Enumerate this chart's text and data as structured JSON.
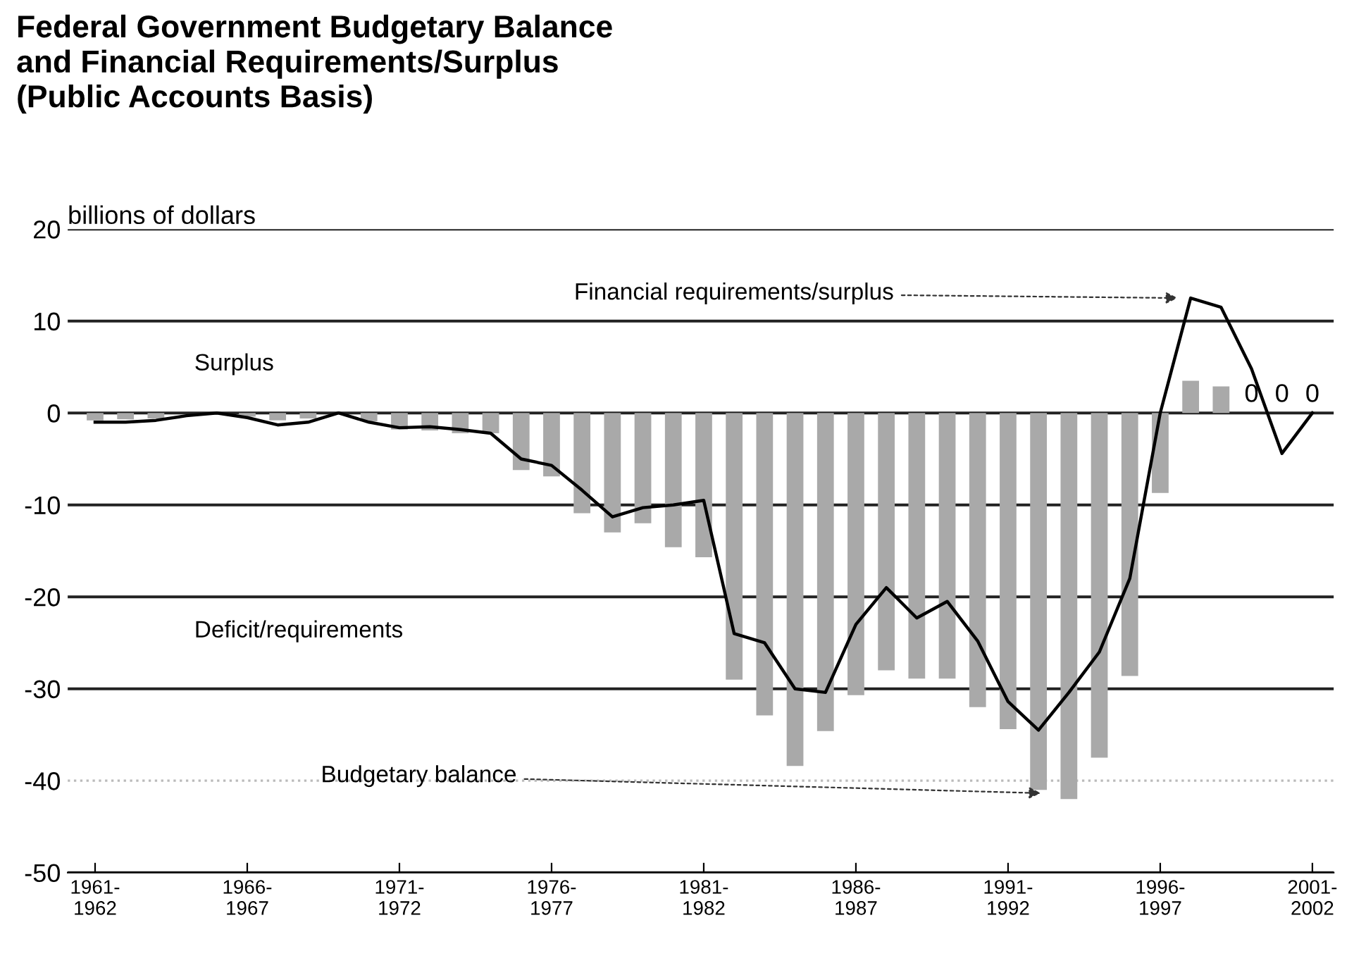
{
  "chart_data": {
    "type": "bar",
    "title": "Federal Government Budgetary Balance\nand Financial Requirements/Surplus\n(Public Accounts Basis)",
    "ylabel": "billions of dollars",
    "annotations": [
      "Surplus",
      "Deficit/requirements"
    ],
    "categories": [
      "1961-\n1962",
      null,
      null,
      null,
      null,
      "1966-\n1967",
      null,
      null,
      null,
      null,
      "1971-\n1972",
      null,
      null,
      null,
      null,
      "1976-\n1977",
      null,
      null,
      null,
      null,
      "1981-\n1982",
      null,
      null,
      null,
      null,
      "1986-\n1987",
      null,
      null,
      null,
      null,
      "1991-\n1992",
      null,
      null,
      null,
      null,
      "1996-\n1997",
      null,
      null,
      null,
      null,
      "2001-\n2002"
    ],
    "series": [
      {
        "name": "Budgetary balance",
        "color": "#a9a9a9",
        "values": [
          -0.8,
          -0.7,
          -0.6,
          null,
          -0.1,
          -0.4,
          -0.8,
          -0.6,
          null,
          -0.9,
          -1.8,
          -1.9,
          -2.2,
          -2.2,
          -6.2,
          -6.9,
          -10.9,
          -13.0,
          -12.0,
          -14.6,
          -15.7,
          -29.0,
          -32.9,
          -38.4,
          -34.6,
          -30.7,
          -28.0,
          -28.9,
          -28.9,
          -32.0,
          -34.4,
          -41.0,
          -42.0,
          -37.5,
          -28.6,
          -8.7,
          3.5,
          2.9,
          0,
          0,
          0
        ],
        "value_labels": [
          null,
          null,
          null,
          null,
          null,
          null,
          null,
          null,
          null,
          null,
          null,
          null,
          null,
          null,
          null,
          null,
          null,
          null,
          null,
          null,
          null,
          null,
          null,
          null,
          null,
          null,
          null,
          null,
          null,
          null,
          null,
          null,
          null,
          null,
          null,
          null,
          null,
          null,
          "0",
          "0",
          "0"
        ]
      },
      {
        "name": "Financial requirements/surplus",
        "type": "line",
        "color": "#000000",
        "values": [
          -1,
          -1,
          -0.8,
          -0.3,
          0,
          -0.5,
          -1.3,
          -1,
          0,
          -1,
          -1.6,
          -1.5,
          -1.8,
          -2.2,
          -5.0,
          -5.7,
          -8.4,
          -11.3,
          -10.3,
          -10,
          -9.5,
          -24,
          -25,
          -30,
          -30.4,
          -23,
          -19,
          -22.3,
          -20.5,
          -24.8,
          -31.4,
          -34.5,
          -30.4,
          -26,
          -18,
          0,
          12.5,
          11.5,
          4.8,
          -4.4,
          0
        ]
      }
    ],
    "ylim": [
      -50,
      20
    ],
    "yticks": [
      -50,
      -40,
      -30,
      -20,
      -10,
      0,
      10,
      20
    ],
    "grid": "y",
    "ref_lines": [
      {
        "axis": "y",
        "value": -40,
        "color": "#bbbbbb",
        "line_style": "dotted"
      }
    ],
    "legend": false,
    "marker": "none",
    "line_style": "solid"
  }
}
